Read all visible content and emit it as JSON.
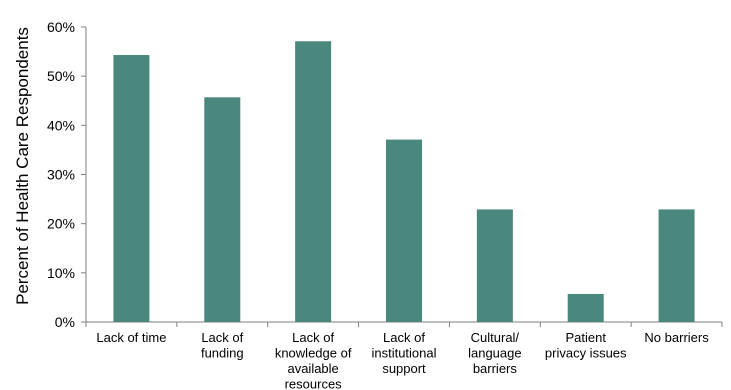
{
  "chart_data": {
    "type": "bar",
    "title": "",
    "xlabel": "",
    "ylabel": "Percent of Health Care Respondents",
    "ylim": [
      0,
      60
    ],
    "yticks": [
      "0%",
      "10%",
      "20%",
      "30%",
      "40%",
      "50%",
      "60%"
    ],
    "grid": false,
    "bar_color": "#4a877c",
    "categories": [
      "Lack of time",
      "Lack of funding",
      "Lack of knowledge of available resources",
      "Lack of institutional support",
      "Cultural/ language barriers",
      "Patient privacy issues",
      "No barriers"
    ],
    "category_lines": [
      [
        "Lack of time"
      ],
      [
        "Lack of",
        "funding"
      ],
      [
        "Lack of",
        "knowledge of",
        "available",
        "resources"
      ],
      [
        "Lack of",
        "institutional",
        "support"
      ],
      [
        "Cultural/",
        "language",
        "barriers"
      ],
      [
        "Patient",
        "privacy issues"
      ],
      [
        "No barriers"
      ]
    ],
    "values": [
      54.3,
      45.7,
      57.1,
      37.1,
      22.9,
      5.7,
      22.9
    ]
  }
}
